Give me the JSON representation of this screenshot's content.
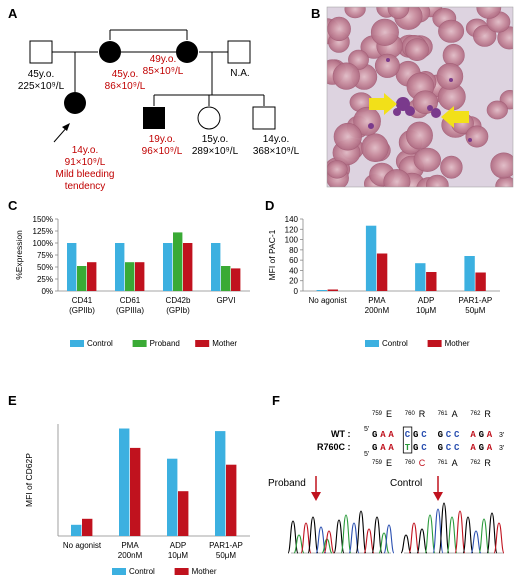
{
  "panels": {
    "A": {
      "letter": "A",
      "people": [
        {
          "age": "45y.o.",
          "count": "225×10⁹/L",
          "color": "#000000"
        },
        {
          "age": "45y.o.",
          "count": "86×10⁹/L",
          "color": "#c00000"
        },
        {
          "age": "49y.o.",
          "count": "85×10⁹/L",
          "color": "#c00000"
        },
        {
          "age": "N.A.",
          "count": "",
          "color": "#000000"
        },
        {
          "age": "14y.o.",
          "count": "91×10⁹/L",
          "note": "Mild bleeding tendency",
          "color": "#c00000"
        },
        {
          "age": "19y.o.",
          "count": "96×10⁹/L",
          "color": "#c00000"
        },
        {
          "age": "15y.o.",
          "count": "289×10⁹/L",
          "color": "#000000"
        },
        {
          "age": "14y.o.",
          "count": "368×10⁹/L",
          "color": "#000000"
        }
      ],
      "note_line1": "Mild bleeding",
      "note_line2": "tendency"
    },
    "B": {
      "letter": "B"
    },
    "C": {
      "letter": "C"
    },
    "D": {
      "letter": "D"
    },
    "E": {
      "letter": "E"
    },
    "F": {
      "letter": "F",
      "wt_label": "WT :",
      "mut_label": "R760C :",
      "five": "5'",
      "three": "3'",
      "codons_top": [
        {
          "n": "759",
          "aa": "E"
        },
        {
          "n": "760",
          "aa": "R"
        },
        {
          "n": "761",
          "aa": "A"
        },
        {
          "n": "762",
          "aa": "R"
        }
      ],
      "codons_bottom": [
        {
          "n": "759",
          "aa": "E"
        },
        {
          "n": "760",
          "aa": "C"
        },
        {
          "n": "761",
          "aa": "A"
        },
        {
          "n": "762",
          "aa": "R"
        }
      ],
      "wt_seq": [
        "G",
        "A",
        "A",
        " ",
        "C",
        "G",
        "C",
        " ",
        "G",
        "C",
        "C",
        " ",
        "A",
        "G",
        "A"
      ],
      "mut_seq": [
        "G",
        "A",
        "A",
        " ",
        "T",
        "G",
        "C",
        " ",
        "G",
        "C",
        "C",
        " ",
        "A",
        "G",
        "A"
      ],
      "proband_label": "Proband",
      "control_label": "Control"
    }
  },
  "colors": {
    "control": "#3cb0e0",
    "proband": "#3aaa35",
    "mother": "#c0121e",
    "affected_red": "#c00000"
  },
  "chart_data": [
    {
      "id": "C",
      "type": "bar",
      "ylabel": "%Expression",
      "ylim": [
        0,
        150
      ],
      "yticks": [
        "0%",
        "25%",
        "50%",
        "75%",
        "100%",
        "125%",
        "150%"
      ],
      "categories": [
        "CD41 (GPIIb)",
        "CD61 (GPIIIa)",
        "CD42b (GPIb)",
        "GPVI"
      ],
      "cat_line1": [
        "CD41",
        "CD61",
        "CD42b",
        "GPVI"
      ],
      "cat_line2": [
        "(GPIIb)",
        "(GPIIIa)",
        "(GPIb)",
        ""
      ],
      "series": [
        {
          "name": "Control",
          "values": [
            100,
            100,
            100,
            100
          ]
        },
        {
          "name": "Proband",
          "values": [
            52,
            60,
            122,
            52
          ]
        },
        {
          "name": "Mother",
          "values": [
            60,
            60,
            100,
            47
          ]
        }
      ],
      "legend": "bottom"
    },
    {
      "id": "D",
      "type": "bar",
      "ylabel": "MFI of PAC-1",
      "ylim": [
        0,
        140
      ],
      "yticks": [
        "0",
        "20",
        "40",
        "60",
        "80",
        "100",
        "120",
        "140"
      ],
      "categories": [
        "No agonist",
        "PMA 200nM",
        "ADP 10μM",
        "PAR1-AP 50μM"
      ],
      "cat_line1": [
        "No agonist",
        "PMA",
        "ADP",
        "PAR1-AP"
      ],
      "cat_line2": [
        "",
        "200nM",
        "10μM",
        "50μM"
      ],
      "series": [
        {
          "name": "Control",
          "values": [
            2,
            127,
            54,
            68
          ]
        },
        {
          "name": "Mother",
          "values": [
            3,
            73,
            37,
            36
          ]
        }
      ],
      "legend": "bottom"
    },
    {
      "id": "E",
      "type": "bar",
      "ylabel": "MFI of CD62P",
      "ylim": [
        0,
        300
      ],
      "yticks": [],
      "categories": [
        "No agonist",
        "PMA 200nM",
        "ADP 10μM",
        "PAR1-AP 50μM"
      ],
      "cat_line1": [
        "No agonist",
        "PMA",
        "ADP",
        "PAR1-AP"
      ],
      "cat_line2": [
        "",
        "200nM",
        "10μM",
        "50μM"
      ],
      "series": [
        {
          "name": "Control",
          "values": [
            30,
            288,
            207,
            281
          ]
        },
        {
          "name": "Mother",
          "values": [
            46,
            236,
            120,
            191
          ]
        }
      ],
      "legend": "bottom"
    }
  ]
}
